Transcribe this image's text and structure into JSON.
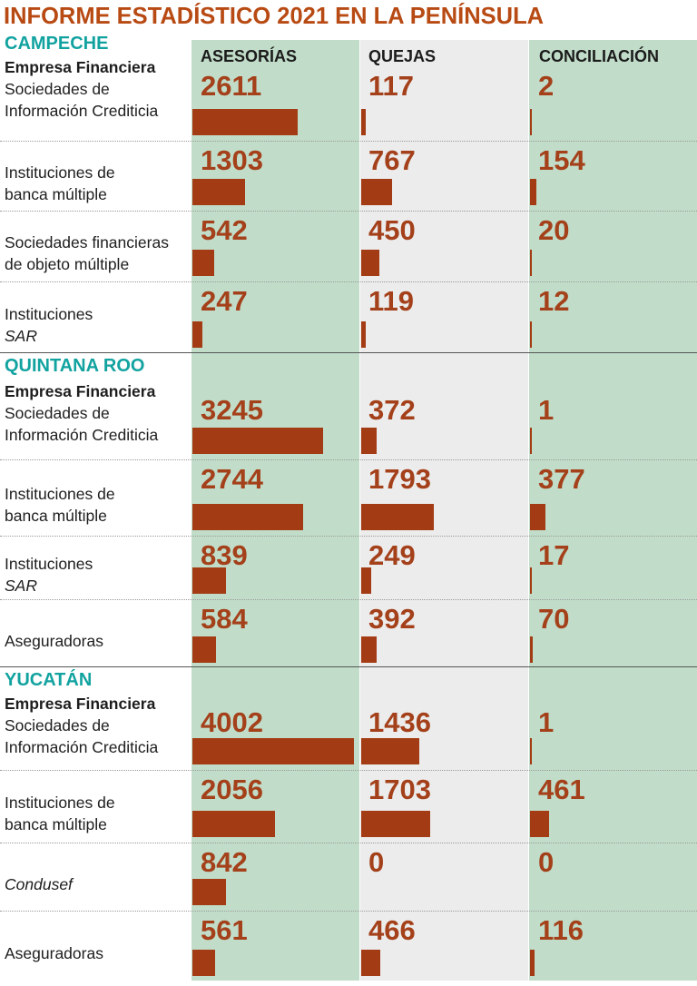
{
  "colors": {
    "title": "#b84a13",
    "value": "#a4401a",
    "bar": "#a33c14",
    "region": "#12a3a0",
    "col_green": "#c1ddc9",
    "col_gray": "#ececec",
    "divider_dotted": "#9a9a9a",
    "divider_solid": "#555555"
  },
  "chart_data": {
    "type": "bar",
    "title": "INFORME ESTADÍSTICO 2021 EN LA PENÍNSULA",
    "measures": [
      "ASESORÍAS",
      "QUEJAS",
      "CONCILIACIÓN"
    ],
    "regions": [
      {
        "name": "CAMPECHE",
        "rows": [
          {
            "label_lines": [
              "Empresa Financiera",
              "Sociedades de",
              "Información Crediticia"
            ],
            "bold_first": true,
            "italic": false,
            "values": [
              2611,
              117,
              2
            ]
          },
          {
            "label_lines": [
              "Instituciones de",
              "banca múltiple"
            ],
            "bold_first": false,
            "italic": false,
            "values": [
              1303,
              767,
              154
            ]
          },
          {
            "label_lines": [
              "Sociedades financieras",
              "de objeto múltiple"
            ],
            "bold_first": false,
            "italic": false,
            "values": [
              542,
              450,
              20
            ]
          },
          {
            "label_lines": [
              "Instituciones",
              "SAR"
            ],
            "bold_first": false,
            "italic_last": true,
            "values": [
              247,
              119,
              12
            ]
          }
        ]
      },
      {
        "name": "QUINTANA ROO",
        "rows": [
          {
            "label_lines": [
              "Empresa Financiera",
              "Sociedades de",
              "Información Crediticia"
            ],
            "bold_first": true,
            "italic": false,
            "values": [
              3245,
              372,
              1
            ]
          },
          {
            "label_lines": [
              "Instituciones de",
              "banca múltiple"
            ],
            "bold_first": false,
            "italic": false,
            "values": [
              2744,
              1793,
              377
            ]
          },
          {
            "label_lines": [
              "Instituciones",
              "SAR"
            ],
            "bold_first": false,
            "italic_last": true,
            "values": [
              839,
              249,
              17
            ]
          },
          {
            "label_lines": [
              "Aseguradoras"
            ],
            "bold_first": false,
            "italic": false,
            "values": [
              584,
              392,
              70
            ]
          }
        ]
      },
      {
        "name": "YUCATÁN",
        "rows": [
          {
            "label_lines": [
              "Empresa Financiera",
              "Sociedades de",
              "Información Crediticia"
            ],
            "bold_first": true,
            "italic": false,
            "values": [
              4002,
              1436,
              1
            ]
          },
          {
            "label_lines": [
              "Instituciones de",
              "banca múltiple"
            ],
            "bold_first": false,
            "italic": false,
            "values": [
              2056,
              1703,
              461
            ]
          },
          {
            "label_lines": [
              "Condusef"
            ],
            "bold_first": false,
            "italic": true,
            "values": [
              842,
              0,
              0
            ]
          },
          {
            "label_lines": [
              "Aseguradoras"
            ],
            "bold_first": false,
            "italic": false,
            "values": [
              561,
              466,
              116
            ]
          }
        ]
      }
    ]
  }
}
